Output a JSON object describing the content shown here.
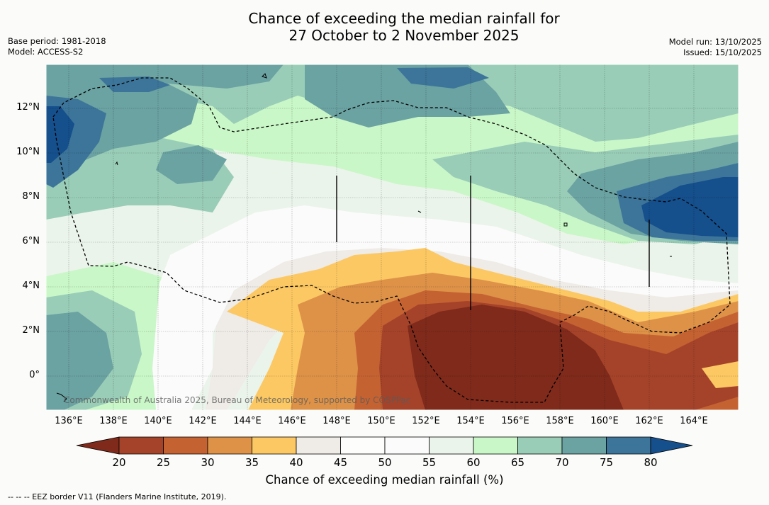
{
  "title": {
    "line1": "Chance of exceeding the median rainfall for",
    "line2": "27 October to 2 November 2025"
  },
  "meta": {
    "base_period": "Base period: 1981-2018",
    "model": "Model: ACCESS-S2",
    "model_run": "Model run: 13/10/2025",
    "issued": "Issued: 15/10/2025"
  },
  "map": {
    "lon_labels": [
      "136°E",
      "138°E",
      "140°E",
      "142°E",
      "144°E",
      "146°E",
      "148°E",
      "150°E",
      "152°E",
      "154°E",
      "156°E",
      "158°E",
      "160°E",
      "162°E",
      "164°E"
    ],
    "lat_labels": [
      "12°N",
      "10°N",
      "8°N",
      "6°N",
      "4°N",
      "2°N",
      "0°"
    ],
    "credit": "Commonwealth of Australia 2025, Bureau of Meteorology, supported by COSPPac"
  },
  "colorbar": {
    "ticks": [
      "20",
      "25",
      "30",
      "35",
      "40",
      "45",
      "50",
      "55",
      "60",
      "65",
      "70",
      "75",
      "80"
    ],
    "colors": [
      "#7f2a1b",
      "#a5432a",
      "#c56232",
      "#dd9248",
      "#fcc863",
      "#efebe6",
      "#fdfdfc",
      "#fbfbfb",
      "#ebf4ea",
      "#c9f7c7",
      "#99cdb7",
      "#6ba2a2",
      "#3c7599",
      "#154f8c"
    ],
    "title": "Chance of exceeding median rainfall (%)"
  },
  "footnote": "--  --  -- EEZ border V11 (Flanders Marine Institute, 2019)."
}
